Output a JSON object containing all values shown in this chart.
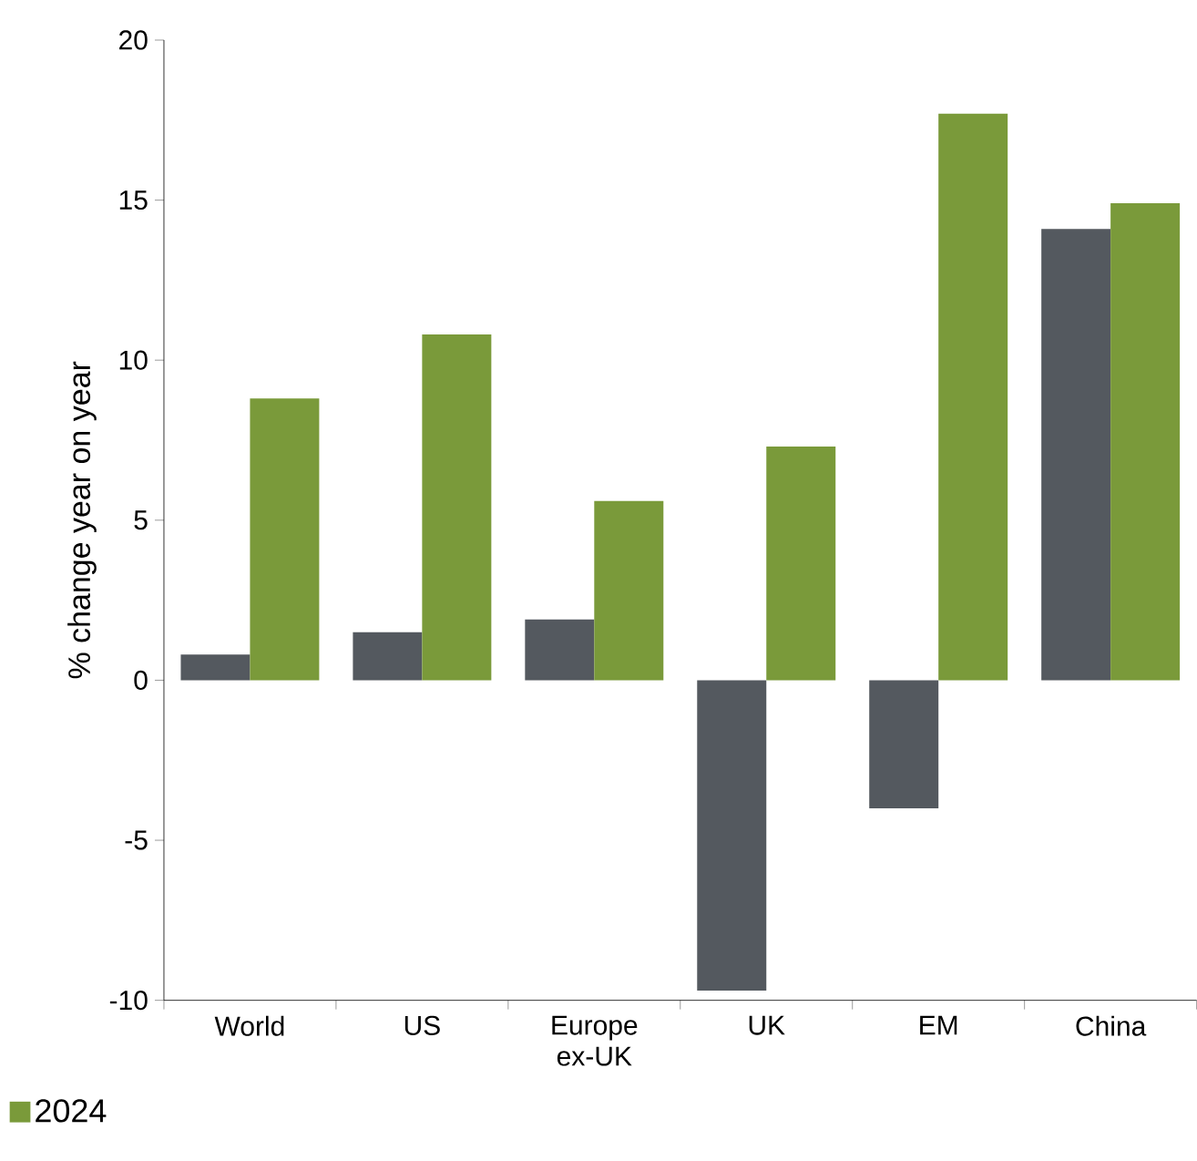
{
  "chart_data": {
    "type": "bar",
    "ylabel": "% change year on year",
    "categories": [
      "World",
      "US",
      "Europe ex-UK",
      "UK",
      "EM",
      "China"
    ],
    "series": [
      {
        "color": "#54595f",
        "values": [
          0.8,
          1.5,
          1.9,
          -9.7,
          -4.0,
          14.1
        ]
      },
      {
        "name": "2024",
        "color": "#7a9a3a",
        "values": [
          8.8,
          10.8,
          5.6,
          7.3,
          17.7,
          14.9
        ]
      }
    ],
    "ylim": [
      -10,
      20
    ],
    "yticks": [
      -10,
      -5,
      0,
      5,
      10,
      15,
      20
    ],
    "grid": false,
    "legend": "bottom left"
  }
}
